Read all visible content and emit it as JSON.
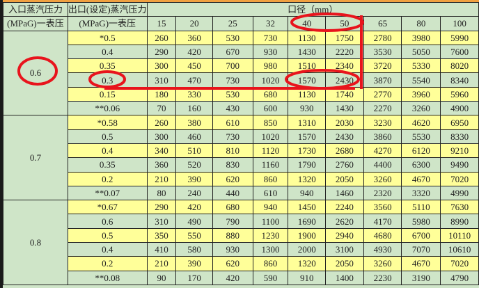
{
  "header": {
    "inlet_label": "入口蒸汽压力",
    "inlet_unit": "(MPaG)一表压",
    "outlet_label": "出口(设定)蒸汽压力",
    "outlet_unit": "(MPaG)一表压",
    "diameter_label": "口径（mm）",
    "diameters": [
      "15",
      "20",
      "25",
      "32",
      "40",
      "50",
      "65",
      "80",
      "100"
    ]
  },
  "groups": [
    {
      "inlet": "0.6",
      "rows": [
        {
          "outlet": "*0.5",
          "values": [
            "260",
            "360",
            "530",
            "730",
            "1130",
            "1750",
            "2780",
            "3980",
            "5990"
          ]
        },
        {
          "outlet": "0.4",
          "values": [
            "290",
            "420",
            "670",
            "930",
            "1430",
            "2220",
            "3530",
            "5050",
            "7600"
          ]
        },
        {
          "outlet": "0.35",
          "values": [
            "300",
            "450",
            "700",
            "980",
            "1510",
            "2340",
            "3720",
            "5330",
            "8020"
          ]
        },
        {
          "outlet": "0.3",
          "values": [
            "310",
            "470",
            "730",
            "1020",
            "1570",
            "2430",
            "3870",
            "5540",
            "8340"
          ]
        },
        {
          "outlet": "0.15",
          "values": [
            "180",
            "330",
            "530",
            "680",
            "1130",
            "1740",
            "2770",
            "3960",
            "5960"
          ]
        },
        {
          "outlet": "**0.06",
          "values": [
            "70",
            "160",
            "430",
            "600",
            "930",
            "1430",
            "2270",
            "3260",
            "4900"
          ]
        }
      ]
    },
    {
      "inlet": "0.7",
      "rows": [
        {
          "outlet": "*0.58",
          "values": [
            "260",
            "380",
            "610",
            "850",
            "1310",
            "2030",
            "3230",
            "4620",
            "6950"
          ]
        },
        {
          "outlet": "0.5",
          "values": [
            "300",
            "460",
            "730",
            "1020",
            "1570",
            "2430",
            "3860",
            "5530",
            "8330"
          ]
        },
        {
          "outlet": "0.4",
          "values": [
            "340",
            "510",
            "810",
            "1120",
            "1730",
            "2680",
            "4270",
            "6120",
            "9210"
          ]
        },
        {
          "outlet": "0.35",
          "values": [
            "360",
            "520",
            "830",
            "1160",
            "1790",
            "2760",
            "4400",
            "6300",
            "9490"
          ]
        },
        {
          "outlet": "0.2",
          "values": [
            "210",
            "390",
            "620",
            "860",
            "1320",
            "2050",
            "3260",
            "4670",
            "7020"
          ]
        },
        {
          "outlet": "**0.07",
          "values": [
            "80",
            "240",
            "440",
            "610",
            "940",
            "1460",
            "2320",
            "3320",
            "4990"
          ]
        }
      ]
    },
    {
      "inlet": "0.8",
      "rows": [
        {
          "outlet": "*0.67",
          "values": [
            "290",
            "420",
            "680",
            "940",
            "1450",
            "2240",
            "3560",
            "5110",
            "7630"
          ]
        },
        {
          "outlet": "0.6",
          "values": [
            "310",
            "490",
            "790",
            "1100",
            "1690",
            "2620",
            "4170",
            "5980",
            "8990"
          ]
        },
        {
          "outlet": "0.5",
          "values": [
            "350",
            "550",
            "880",
            "1230",
            "1900",
            "2940",
            "4680",
            "6700",
            "10110"
          ]
        },
        {
          "outlet": "0.4",
          "values": [
            "410",
            "580",
            "930",
            "1300",
            "2000",
            "3100",
            "4930",
            "7070",
            "10610"
          ]
        },
        {
          "outlet": "0.2",
          "values": [
            "210",
            "390",
            "620",
            "860",
            "1320",
            "2050",
            "3260",
            "4670",
            "7020"
          ]
        },
        {
          "outlet": "**0.08",
          "values": [
            "90",
            "170",
            "420",
            "590",
            "910",
            "1400",
            "2230",
            "3190",
            "4790"
          ]
        }
      ]
    }
  ],
  "colors": {
    "yellow_row": "#ffff99",
    "green_row": "#cfe5c8",
    "annotation": "#e8141c",
    "top_border": "#f0a040"
  }
}
